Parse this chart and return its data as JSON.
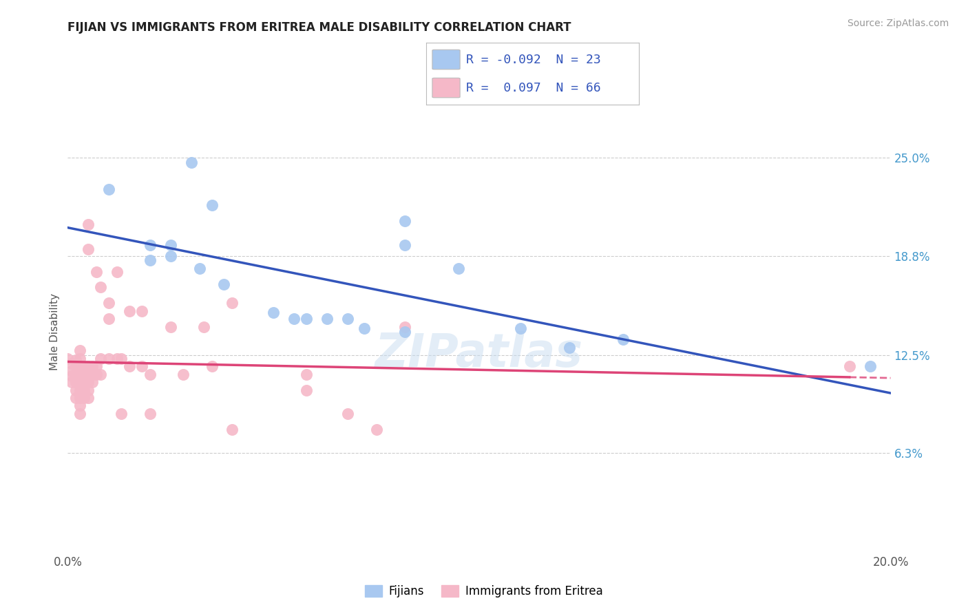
{
  "title": "FIJIAN VS IMMIGRANTS FROM ERITREA MALE DISABILITY CORRELATION CHART",
  "source": "Source: ZipAtlas.com",
  "xlabel": "",
  "ylabel": "Male Disability",
  "xmin": 0.0,
  "xmax": 0.2,
  "ymin": 0.0,
  "ymax": 0.28,
  "yticks": [
    0.0,
    0.063,
    0.125,
    0.188,
    0.25
  ],
  "ytick_labels": [
    "",
    "6.3%",
    "12.5%",
    "18.8%",
    "25.0%"
  ],
  "xticks": [
    0.0,
    0.05,
    0.1,
    0.15,
    0.2
  ],
  "xtick_labels": [
    "0.0%",
    "",
    "",
    "",
    "20.0%"
  ],
  "legend_blue_r": "-0.092",
  "legend_blue_n": "23",
  "legend_pink_r": "0.097",
  "legend_pink_n": "66",
  "legend_label_blue": "Fijians",
  "legend_label_pink": "Immigrants from Eritrea",
  "blue_color": "#A8C8F0",
  "pink_color": "#F5B8C8",
  "trendline_blue_color": "#3355BB",
  "trendline_pink_color": "#DD4477",
  "background_color": "#FFFFFF",
  "grid_color": "#CCCCCC",
  "blue_scatter": [
    [
      0.01,
      0.23
    ],
    [
      0.03,
      0.247
    ],
    [
      0.035,
      0.22
    ],
    [
      0.02,
      0.195
    ],
    [
      0.02,
      0.185
    ],
    [
      0.025,
      0.195
    ],
    [
      0.025,
      0.188
    ],
    [
      0.032,
      0.18
    ],
    [
      0.038,
      0.17
    ],
    [
      0.05,
      0.152
    ],
    [
      0.055,
      0.148
    ],
    [
      0.058,
      0.148
    ],
    [
      0.063,
      0.148
    ],
    [
      0.068,
      0.148
    ],
    [
      0.072,
      0.142
    ],
    [
      0.082,
      0.14
    ],
    [
      0.082,
      0.21
    ],
    [
      0.082,
      0.195
    ],
    [
      0.095,
      0.18
    ],
    [
      0.11,
      0.142
    ],
    [
      0.122,
      0.13
    ],
    [
      0.135,
      0.135
    ],
    [
      0.195,
      0.118
    ]
  ],
  "pink_scatter": [
    [
      0.0,
      0.123
    ],
    [
      0.001,
      0.12
    ],
    [
      0.001,
      0.115
    ],
    [
      0.001,
      0.112
    ],
    [
      0.001,
      0.108
    ],
    [
      0.002,
      0.122
    ],
    [
      0.002,
      0.118
    ],
    [
      0.002,
      0.113
    ],
    [
      0.002,
      0.108
    ],
    [
      0.002,
      0.103
    ],
    [
      0.002,
      0.098
    ],
    [
      0.003,
      0.128
    ],
    [
      0.003,
      0.123
    ],
    [
      0.003,
      0.118
    ],
    [
      0.003,
      0.113
    ],
    [
      0.003,
      0.108
    ],
    [
      0.003,
      0.103
    ],
    [
      0.003,
      0.098
    ],
    [
      0.003,
      0.093
    ],
    [
      0.003,
      0.088
    ],
    [
      0.004,
      0.118
    ],
    [
      0.004,
      0.113
    ],
    [
      0.004,
      0.108
    ],
    [
      0.004,
      0.103
    ],
    [
      0.004,
      0.098
    ],
    [
      0.005,
      0.118
    ],
    [
      0.005,
      0.113
    ],
    [
      0.005,
      0.108
    ],
    [
      0.005,
      0.103
    ],
    [
      0.005,
      0.098
    ],
    [
      0.005,
      0.208
    ],
    [
      0.005,
      0.192
    ],
    [
      0.006,
      0.118
    ],
    [
      0.006,
      0.113
    ],
    [
      0.006,
      0.108
    ],
    [
      0.007,
      0.178
    ],
    [
      0.007,
      0.118
    ],
    [
      0.007,
      0.113
    ],
    [
      0.008,
      0.168
    ],
    [
      0.008,
      0.123
    ],
    [
      0.008,
      0.113
    ],
    [
      0.01,
      0.158
    ],
    [
      0.01,
      0.148
    ],
    [
      0.01,
      0.123
    ],
    [
      0.012,
      0.178
    ],
    [
      0.012,
      0.123
    ],
    [
      0.013,
      0.123
    ],
    [
      0.013,
      0.088
    ],
    [
      0.015,
      0.153
    ],
    [
      0.015,
      0.118
    ],
    [
      0.018,
      0.153
    ],
    [
      0.018,
      0.118
    ],
    [
      0.02,
      0.113
    ],
    [
      0.02,
      0.088
    ],
    [
      0.025,
      0.143
    ],
    [
      0.028,
      0.113
    ],
    [
      0.033,
      0.143
    ],
    [
      0.035,
      0.118
    ],
    [
      0.04,
      0.158
    ],
    [
      0.04,
      0.078
    ],
    [
      0.058,
      0.113
    ],
    [
      0.058,
      0.103
    ],
    [
      0.068,
      0.088
    ],
    [
      0.075,
      0.078
    ],
    [
      0.082,
      0.143
    ],
    [
      0.19,
      0.118
    ]
  ]
}
